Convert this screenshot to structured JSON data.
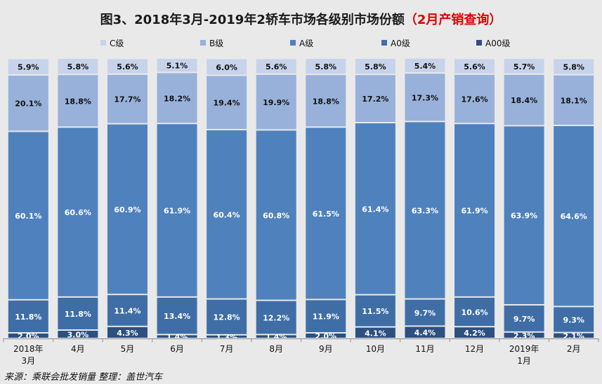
{
  "title": {
    "main": "图3、2018年3月-2019年2轿车市场各级别市场份额",
    "highlight": "（2月产销查询）"
  },
  "source_note": "来源：乘联会批发销量  整理：盖世汽车",
  "colors": {
    "C级": "#c7d3ea",
    "B级": "#98b1da",
    "A级": "#4f81bd",
    "A0级": "#3f6ea6",
    "A00级": "#2c5080",
    "gap": "#ffffff"
  },
  "chart_data": {
    "type": "bar",
    "stacked": "percent",
    "categories": [
      "2018年3月",
      "4月",
      "5月",
      "6月",
      "7月",
      "8月",
      "9月",
      "10月",
      "11月",
      "12月",
      "2019年1月",
      "2月"
    ],
    "series": [
      {
        "name": "A00级",
        "values": [
          2.0,
          3.0,
          4.3,
          1.4,
          1.3,
          1.4,
          2.0,
          4.1,
          4.4,
          4.2,
          2.3,
          2.1
        ]
      },
      {
        "name": "A0级",
        "values": [
          11.8,
          11.8,
          11.4,
          13.4,
          12.8,
          12.2,
          11.9,
          11.5,
          9.7,
          10.6,
          9.7,
          9.3
        ]
      },
      {
        "name": "A级",
        "values": [
          60.1,
          60.6,
          60.9,
          61.9,
          60.4,
          60.8,
          61.5,
          61.4,
          63.3,
          61.9,
          63.9,
          64.6
        ]
      },
      {
        "name": "B级",
        "values": [
          20.1,
          18.8,
          17.7,
          18.2,
          19.4,
          19.9,
          18.8,
          17.2,
          17.3,
          17.6,
          18.4,
          18.1
        ]
      },
      {
        "name": "C级",
        "values": [
          5.9,
          5.8,
          5.6,
          5.1,
          6.0,
          5.6,
          5.8,
          5.8,
          5.4,
          5.6,
          5.7,
          5.8
        ]
      }
    ],
    "legend_order": [
      "C级",
      "B级",
      "A级",
      "A0级",
      "A00级"
    ],
    "legend_position": "top",
    "value_suffix": "%",
    "ylim": [
      0,
      100
    ]
  }
}
